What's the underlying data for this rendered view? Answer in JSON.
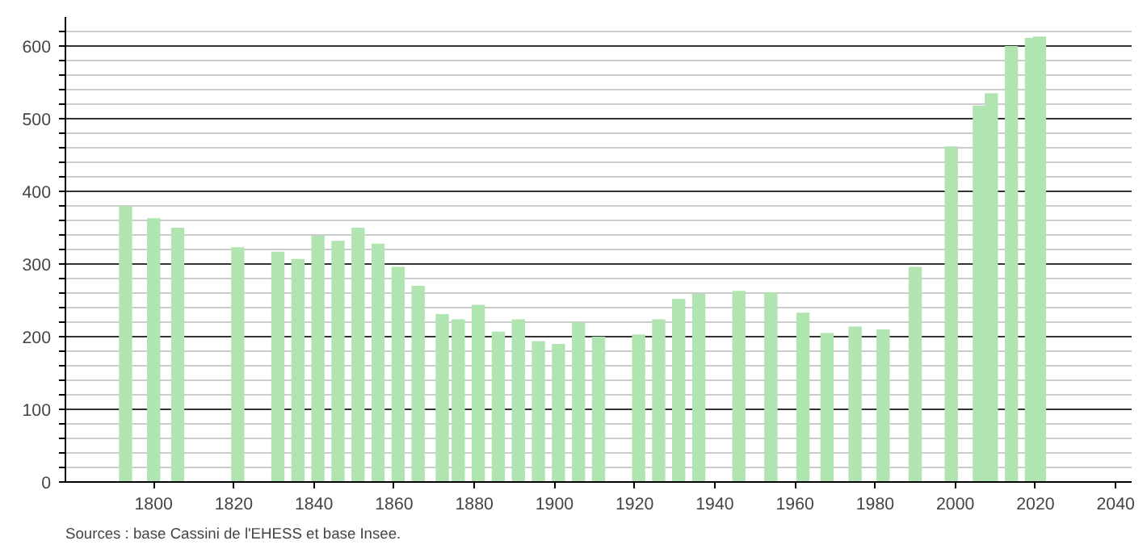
{
  "chart_data": {
    "type": "bar",
    "color": "#b0e4b0",
    "x": [
      1793,
      1800,
      1806,
      1821,
      1831,
      1836,
      1841,
      1846,
      1851,
      1856,
      1861,
      1866,
      1872,
      1876,
      1881,
      1886,
      1891,
      1896,
      1901,
      1906,
      1911,
      1921,
      1926,
      1931,
      1936,
      1946,
      1954,
      1962,
      1968,
      1975,
      1982,
      1990,
      1999,
      2006,
      2009,
      2014,
      2019,
      2021
    ],
    "values": [
      380,
      363,
      350,
      323,
      317,
      307,
      339,
      332,
      350,
      328,
      296,
      270,
      231,
      224,
      244,
      207,
      224,
      194,
      190,
      220,
      200,
      203,
      224,
      252,
      259,
      263,
      261,
      233,
      205,
      214,
      210,
      296,
      462,
      518,
      535,
      600,
      611,
      613
    ],
    "xlim": [
      1778,
      2044
    ],
    "xticks": [
      1800,
      1820,
      1840,
      1860,
      1880,
      1900,
      1920,
      1940,
      1960,
      1980,
      2000,
      2020,
      2040
    ],
    "ylim": [
      0,
      640
    ],
    "yticks": [
      0,
      {
        "value": 20,
        "label": null
      },
      {
        "value": 40,
        "label": null
      },
      {
        "value": 60,
        "label": null
      },
      {
        "value": 80,
        "label": null
      },
      100,
      {
        "value": 120,
        "label": null
      },
      {
        "value": 140,
        "label": null
      },
      {
        "value": 160,
        "label": null
      },
      {
        "value": 180,
        "label": null
      },
      200,
      {
        "value": 220,
        "label": null
      },
      {
        "value": 240,
        "label": null
      },
      {
        "value": 260,
        "label": null
      },
      {
        "value": 280,
        "label": null
      },
      300,
      {
        "value": 320,
        "label": null
      },
      {
        "value": 340,
        "label": null
      },
      {
        "value": 360,
        "label": null
      },
      {
        "value": 380,
        "label": null
      },
      400,
      {
        "value": 420,
        "label": null
      },
      {
        "value": 440,
        "label": null
      },
      {
        "value": 460,
        "label": null
      },
      {
        "value": 480,
        "label": null
      },
      500,
      {
        "value": 520,
        "label": null
      },
      {
        "value": 540,
        "label": null
      },
      {
        "value": 560,
        "label": null
      },
      {
        "value": 580,
        "label": null
      },
      600,
      {
        "value": 620,
        "label": null
      }
    ],
    "grid": "y",
    "annotations": [
      "Sources : base Cassini de l'EHESS et base Insee."
    ]
  }
}
